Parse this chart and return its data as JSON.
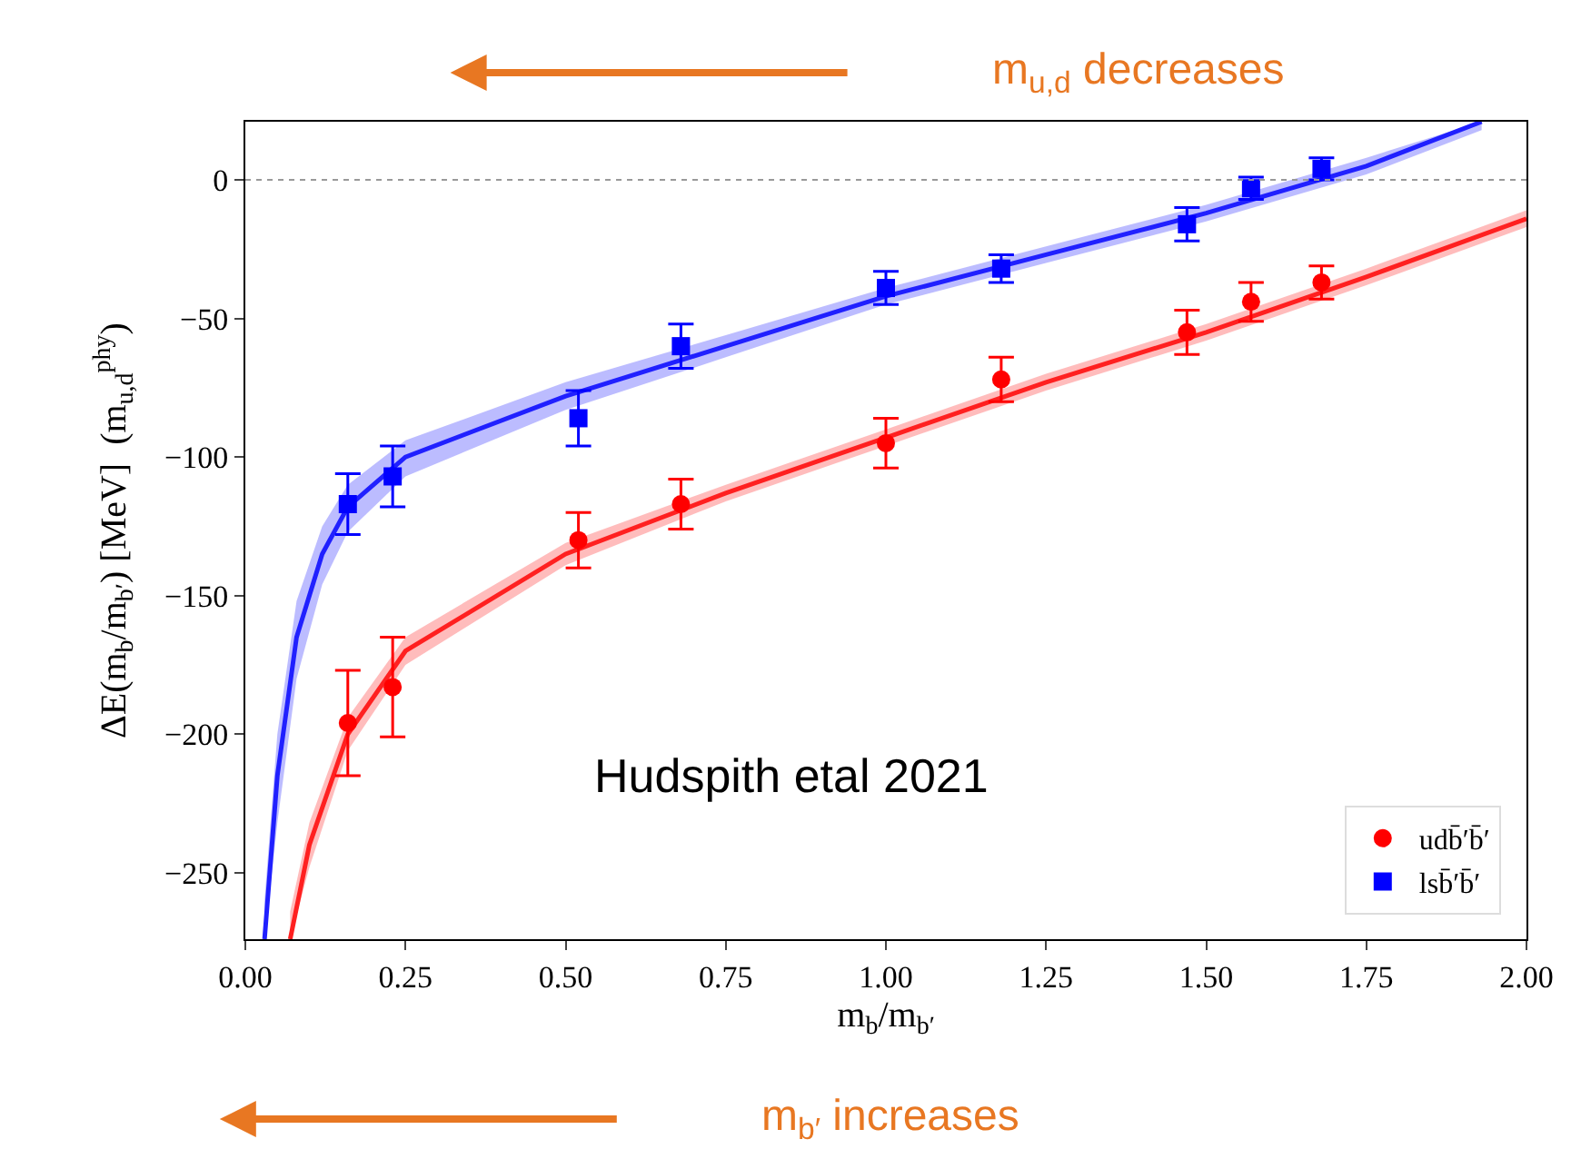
{
  "chart_data": {
    "type": "scatter",
    "xlabel": "m$_{b}$/m$_{b′}$",
    "ylabel": "ΔE(m$_{b}$/m$_{b′}$) [MeV]  (m$_{u,d}$$^{phy}$)",
    "annotations": [
      "m$_{u,d}$ decreases",
      "m$_{b′}$ increases",
      "Hudspith etal 2021"
    ],
    "xlim": [
      0,
      2
    ],
    "xticks": [
      {
        "value": 0,
        "label": "0.00"
      },
      {
        "value": 0.25,
        "label": "0.25"
      },
      {
        "value": 0.5,
        "label": "0.50"
      },
      {
        "value": 0.75,
        "label": "0.75"
      },
      {
        "value": 1,
        "label": "1.00"
      },
      {
        "value": 1.25,
        "label": "1.25"
      },
      {
        "value": 1.5,
        "label": "1.50"
      },
      {
        "value": 1.75,
        "label": "1.75"
      },
      {
        "value": 2,
        "label": "2.00"
      }
    ],
    "ylim": [
      -274,
      21
    ],
    "yticks": [
      {
        "value": -250,
        "label": "−250"
      },
      {
        "value": -200,
        "label": "−200"
      },
      {
        "value": -150,
        "label": "−150"
      },
      {
        "value": -100,
        "label": "−100"
      },
      {
        "value": -50,
        "label": "−50"
      },
      0
    ],
    "legend": "bottom right",
    "ref_lines": [
      {
        "axis": "y",
        "value": 0,
        "color": "#999999",
        "line_style": "dotted"
      }
    ],
    "series": [
      {
        "type": "line",
        "color": "#ff2020",
        "marker": "none",
        "x": [
          0.07,
          0.1,
          0.16,
          0.25,
          0.5,
          0.75,
          1.0,
          1.25,
          1.5,
          1.75,
          2.0
        ],
        "values": [
          -274,
          -240,
          -200,
          -170,
          -135,
          -113,
          -93,
          -73,
          -55,
          -35,
          -14
        ],
        "lower": [
          -274,
          -248,
          -206,
          -175,
          -139,
          -116,
          -96,
          -76,
          -58,
          -38,
          -17
        ],
        "upper": [
          -264,
          -232,
          -194,
          -165,
          -131,
          -110,
          -90,
          -70,
          -52,
          -32,
          -11
        ]
      },
      {
        "type": "line",
        "color": "#2020ff",
        "marker": "none",
        "x": [
          0.03,
          0.05,
          0.08,
          0.12,
          0.16,
          0.25,
          0.5,
          0.75,
          1.0,
          1.25,
          1.5,
          1.75,
          1.93
        ],
        "values": [
          -274,
          -215,
          -165,
          -135,
          -118,
          -100,
          -78,
          -60,
          -42,
          -27,
          -12,
          5,
          21
        ],
        "lower": [
          -274,
          -232,
          -180,
          -146,
          -127,
          -107,
          -83,
          -64,
          -45,
          -30,
          -15,
          2,
          18
        ],
        "upper": [
          -260,
          -200,
          -152,
          -125,
          -110,
          -94,
          -73,
          -56,
          -39,
          -24,
          -9,
          8,
          21
        ]
      },
      {
        "name": "udb̄′b̄′",
        "color": "#ff0000",
        "marker": "circle",
        "x": [
          0.16,
          0.23,
          0.52,
          0.68,
          1.0,
          1.18,
          1.47,
          1.57,
          1.68
        ],
        "values": [
          -196,
          -183,
          -130,
          -117,
          -95,
          -72,
          -55,
          -44,
          -37
        ],
        "errors": [
          19,
          18,
          10,
          9,
          9,
          8,
          8,
          7,
          6
        ]
      },
      {
        "name": "lsb̄′b̄′",
        "color": "#0000ff",
        "marker": "square",
        "x": [
          0.16,
          0.23,
          0.52,
          0.68,
          1.0,
          1.18,
          1.47,
          1.57,
          1.68
        ],
        "values": [
          -117,
          -107,
          -86,
          -60,
          -39,
          -32,
          -16,
          -3,
          4
        ],
        "errors": [
          11,
          11,
          10,
          8,
          6,
          5,
          6,
          4,
          4
        ]
      }
    ]
  }
}
